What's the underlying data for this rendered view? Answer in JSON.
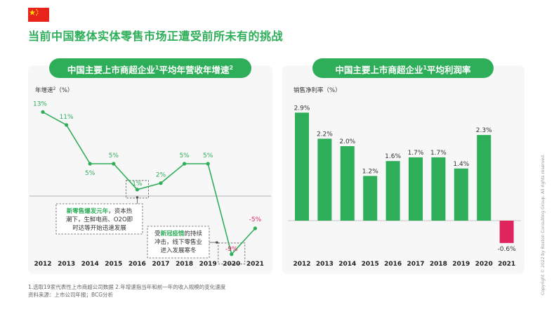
{
  "page": {
    "title": "当前中国整体实体零售市场正遭受前所未有的挑战",
    "flag_icon": "china-flag-icon",
    "footnote_1": "1.选取19家代表性上市商超公司数据 2.年增速指当年和前一年的收入规模的变化速度",
    "footnote_2": "资料来源：上市公司年报；BCG分析",
    "copyright": "Copyright © 2022 by Boston Consulting Group. All rights reserved.",
    "accent_color": "#2fae5a",
    "negative_color": "#e0245e"
  },
  "left_panel": {
    "title_main": "中国主要上市商超企业",
    "title_sup1": "1",
    "title_mid": "平均年营收年增速",
    "title_sup2": "2",
    "callout_1": {
      "parts": [
        {
          "t": "新零售爆发元年",
          "hl": true
        },
        {
          "t": "，资本热",
          "hl": false
        },
        {
          "t": "\n潮下，生鲜电商、O2O即",
          "hl": false
        },
        {
          "t": "\n时达等开始迅速发展",
          "hl": false
        }
      ]
    },
    "callout_2": {
      "parts": [
        {
          "t": "受",
          "hl": false
        },
        {
          "t": "新冠疫情",
          "hl": true
        },
        {
          "t": "的持续",
          "hl": false
        },
        {
          "t": "\n冲击，线下零售业",
          "hl": false
        },
        {
          "t": "\n进入发展寒冬",
          "hl": false
        }
      ]
    }
  },
  "right_panel": {
    "title_main": "中国主要上市商超企业",
    "title_sup": "1",
    "title_end": "平均利润率"
  },
  "chart_data": [
    {
      "type": "line",
      "title": "中国主要上市商超企业¹平均年营收年增速²",
      "ylabel": "年增速²（%）",
      "ylabel_text": "年增速",
      "ylabel_sup": "2",
      "ylabel_unit": "（%）",
      "categories": [
        "2012",
        "2013",
        "2014",
        "2015",
        "2016",
        "2017",
        "2018",
        "2019",
        "2020",
        "2021"
      ],
      "values": [
        13,
        11,
        5,
        5,
        1,
        2,
        5,
        5,
        -9,
        -5
      ],
      "labels": [
        "13%",
        "11%",
        "5%",
        "5%",
        "1%",
        "2%",
        "5%",
        "5%",
        "-9%",
        "-5%"
      ],
      "ylim": [
        -12,
        15
      ],
      "zero_line": true
    },
    {
      "type": "bar",
      "title": "中国主要上市商超企业¹平均利润率",
      "ylabel": "销售净利率（%）",
      "categories": [
        "2012",
        "2013",
        "2014",
        "2015",
        "2016",
        "2017",
        "2018",
        "2019",
        "2020",
        "2021"
      ],
      "values": [
        2.9,
        2.2,
        2.0,
        1.2,
        1.6,
        1.7,
        1.7,
        1.4,
        2.3,
        -0.6
      ],
      "labels": [
        "2.9%",
        "2.2%",
        "2.0%",
        "1.2%",
        "1.6%",
        "1.7%",
        "1.7%",
        "1.4%",
        "2.3%",
        "-0.6%"
      ],
      "ylim": [
        -0.9,
        3.3
      ]
    }
  ]
}
